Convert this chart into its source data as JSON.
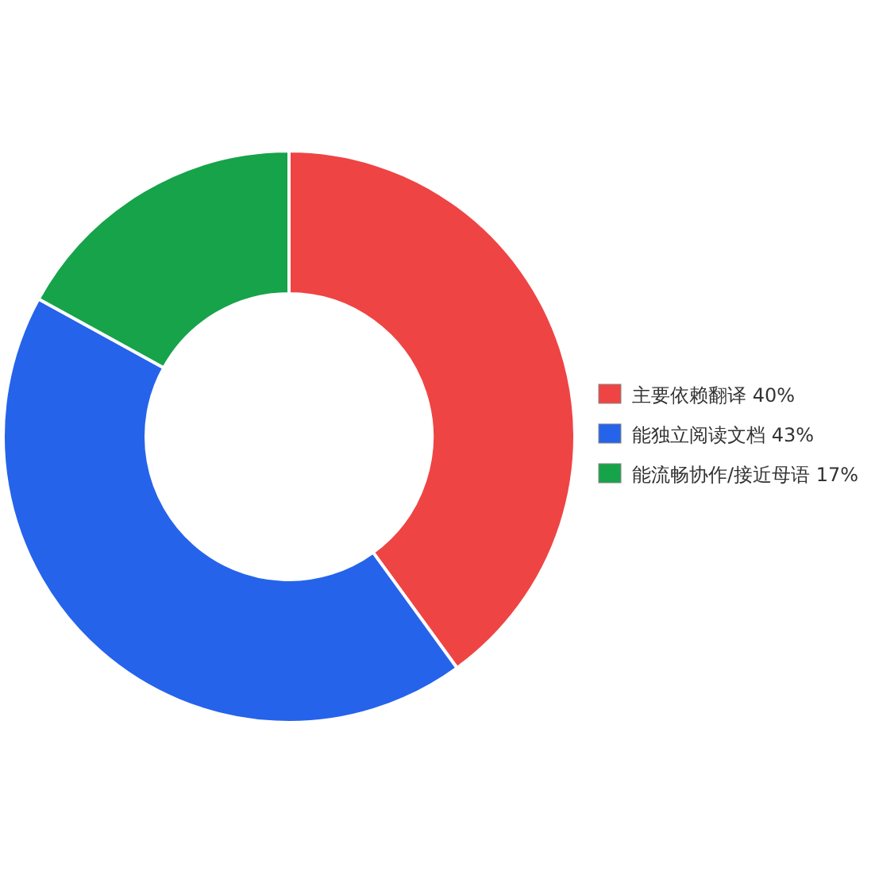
{
  "chart_data": {
    "type": "donut",
    "categories": [
      "主要依赖翻译 40%",
      "能独立阅读文档 43%",
      "能流畅协作/接近母语 17%"
    ],
    "values": [
      40,
      43,
      17
    ],
    "colors": [
      "#ef4444",
      "#2563eb",
      "#16a34a"
    ],
    "legend": "right"
  }
}
